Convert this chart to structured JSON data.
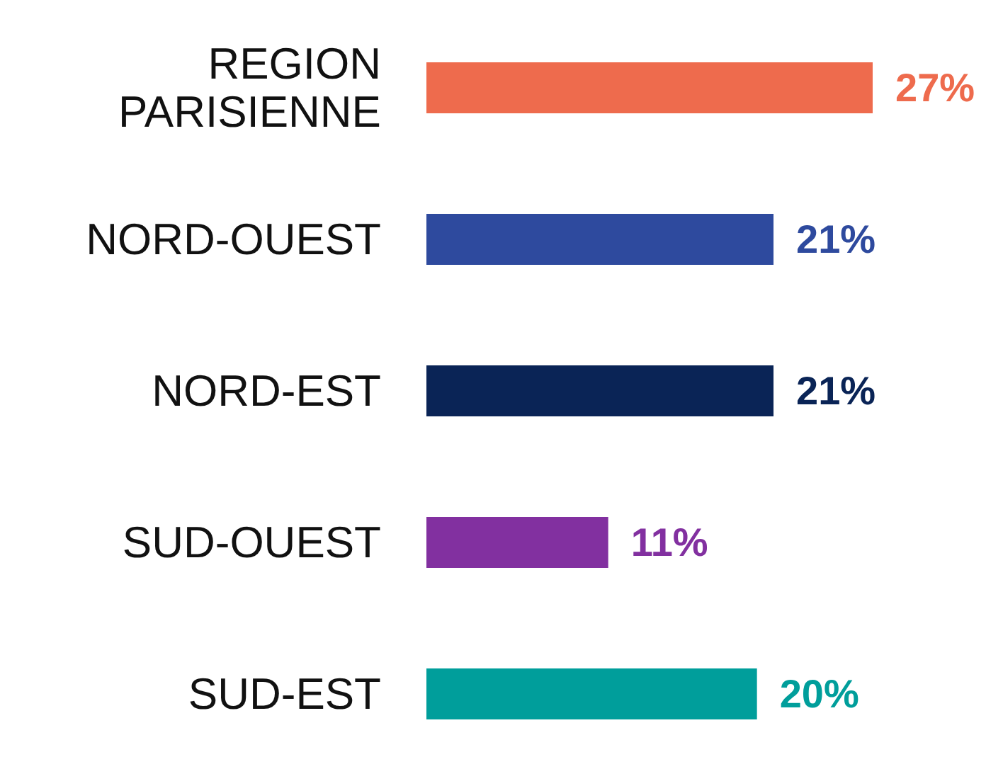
{
  "chart_data": {
    "type": "bar",
    "orientation": "horizontal",
    "categories": [
      "REGION PARISIENNE",
      "NORD-OUEST",
      "NORD-EST",
      "SUD-OUEST",
      "SUD-EST"
    ],
    "values": [
      27,
      21,
      21,
      11,
      20
    ],
    "colors": [
      "#ee6b4d",
      "#2e4a9e",
      "#0a2456",
      "#8230a0",
      "#009e9b"
    ],
    "value_labels": [
      "27%",
      "21%",
      "21%",
      "11%",
      "20%"
    ],
    "tick_labels": "y"
  }
}
